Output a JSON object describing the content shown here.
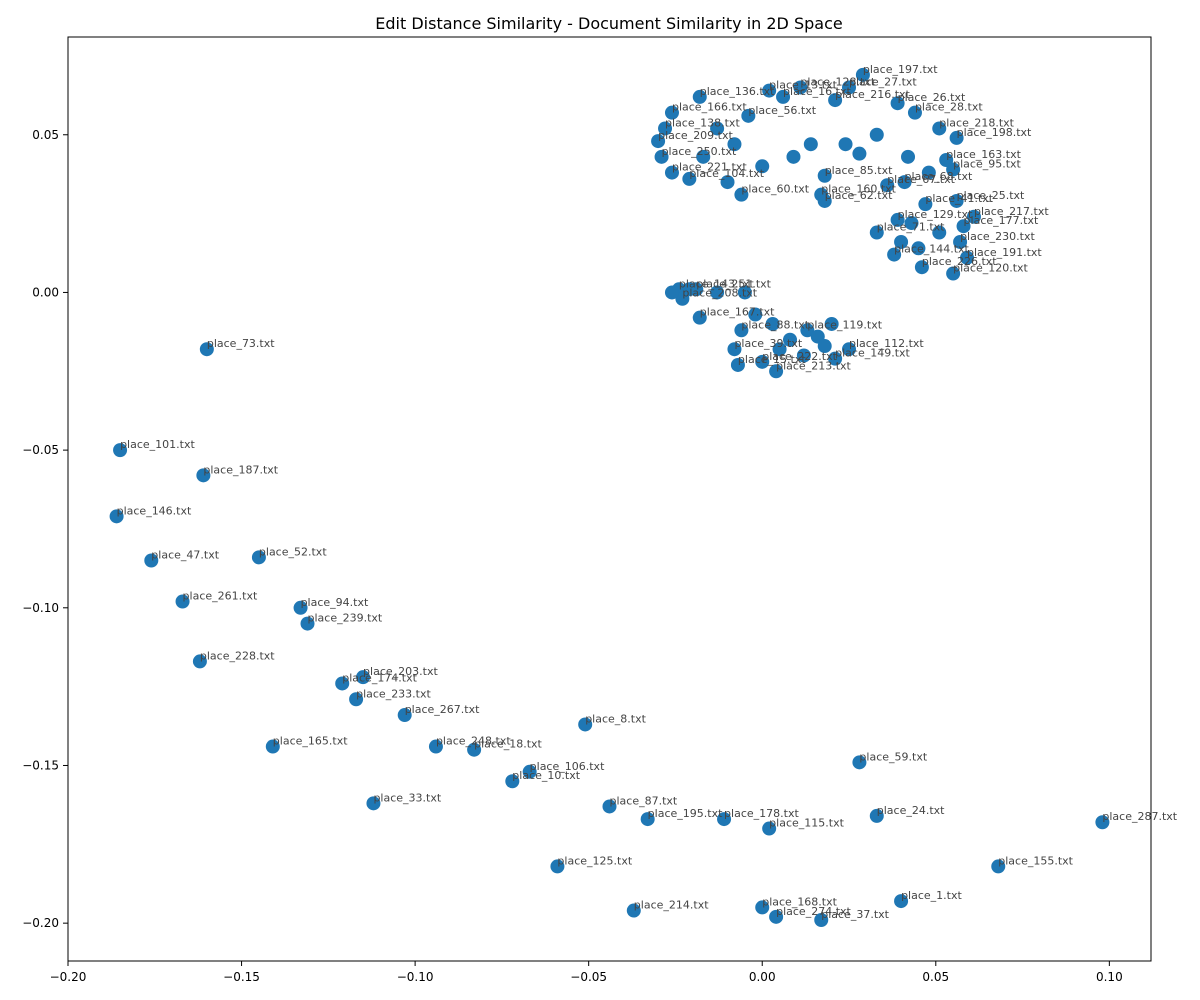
{
  "chart_data": {
    "type": "scatter",
    "title": "Edit Distance Similarity - Document Similarity in 2D Space",
    "xlabel": "",
    "ylabel": "",
    "xlim": [
      -0.2,
      0.112
    ],
    "ylim": [
      -0.212,
      0.081
    ],
    "xticks": [
      -0.2,
      -0.15,
      -0.1,
      -0.05,
      0.0,
      0.05,
      0.1
    ],
    "xtick_labels": [
      "−0.20",
      "−0.15",
      "−0.10",
      "−0.05",
      "0.00",
      "0.05",
      "0.10"
    ],
    "yticks": [
      -0.2,
      -0.15,
      -0.1,
      -0.05,
      0.0,
      0.05
    ],
    "ytick_labels": [
      "−0.20",
      "−0.15",
      "−0.10",
      "−0.05",
      "0.00",
      "0.05"
    ],
    "grid": false,
    "legend": "none",
    "marker_color": "#1f77b4",
    "label_color": "#444444",
    "points": [
      {
        "x": -0.16,
        "y": -0.018,
        "label": "place_73.txt"
      },
      {
        "x": -0.185,
        "y": -0.05,
        "label": "place_101.txt"
      },
      {
        "x": -0.161,
        "y": -0.058,
        "label": "place_187.txt"
      },
      {
        "x": -0.186,
        "y": -0.071,
        "label": "place_146.txt"
      },
      {
        "x": -0.176,
        "y": -0.085,
        "label": "place_47.txt"
      },
      {
        "x": -0.145,
        "y": -0.084,
        "label": "place_52.txt"
      },
      {
        "x": -0.167,
        "y": -0.098,
        "label": "place_261.txt"
      },
      {
        "x": -0.133,
        "y": -0.1,
        "label": "place_94.txt"
      },
      {
        "x": -0.131,
        "y": -0.105,
        "label": "place_239.txt"
      },
      {
        "x": -0.162,
        "y": -0.117,
        "label": "place_228.txt"
      },
      {
        "x": -0.115,
        "y": -0.122,
        "label": "place_203.txt"
      },
      {
        "x": -0.121,
        "y": -0.124,
        "label": "place_174.txt"
      },
      {
        "x": -0.117,
        "y": -0.129,
        "label": "place_233.txt"
      },
      {
        "x": -0.103,
        "y": -0.134,
        "label": "place_267.txt"
      },
      {
        "x": -0.051,
        "y": -0.137,
        "label": "place_8.txt"
      },
      {
        "x": -0.141,
        "y": -0.144,
        "label": "place_165.txt"
      },
      {
        "x": -0.094,
        "y": -0.144,
        "label": "place_248.txt"
      },
      {
        "x": -0.083,
        "y": -0.145,
        "label": "place_18.txt"
      },
      {
        "x": -0.067,
        "y": -0.152,
        "label": "place_106.txt"
      },
      {
        "x": -0.072,
        "y": -0.155,
        "label": "place_10.txt"
      },
      {
        "x": 0.028,
        "y": -0.149,
        "label": "place_59.txt"
      },
      {
        "x": -0.112,
        "y": -0.162,
        "label": "place_33.txt"
      },
      {
        "x": -0.044,
        "y": -0.163,
        "label": "place_87.txt"
      },
      {
        "x": -0.033,
        "y": -0.167,
        "label": "place_195.txt"
      },
      {
        "x": -0.011,
        "y": -0.167,
        "label": "place_178.txt"
      },
      {
        "x": 0.002,
        "y": -0.17,
        "label": "place_115.txt"
      },
      {
        "x": 0.033,
        "y": -0.166,
        "label": "place_24.txt"
      },
      {
        "x": 0.098,
        "y": -0.168,
        "label": "place_287.txt"
      },
      {
        "x": -0.059,
        "y": -0.182,
        "label": "place_125.txt"
      },
      {
        "x": 0.068,
        "y": -0.182,
        "label": "place_155.txt"
      },
      {
        "x": 0.04,
        "y": -0.193,
        "label": "place_1.txt"
      },
      {
        "x": 0.0,
        "y": -0.195,
        "label": "place_168.txt"
      },
      {
        "x": 0.004,
        "y": -0.198,
        "label": "place_274.txt"
      },
      {
        "x": 0.017,
        "y": -0.199,
        "label": "place_37.txt"
      },
      {
        "x": -0.037,
        "y": -0.196,
        "label": "place_214.txt"
      },
      {
        "x": 0.029,
        "y": 0.069,
        "label": "place_197.txt"
      },
      {
        "x": 0.025,
        "y": 0.065,
        "label": "place_27.txt"
      },
      {
        "x": 0.011,
        "y": 0.065,
        "label": "place_128.txt"
      },
      {
        "x": 0.002,
        "y": 0.064,
        "label": "place_13.txt"
      },
      {
        "x": -0.018,
        "y": 0.062,
        "label": "place_136.txt"
      },
      {
        "x": 0.039,
        "y": 0.06,
        "label": "place_26.txt"
      },
      {
        "x": 0.044,
        "y": 0.057,
        "label": "place_28.txt"
      },
      {
        "x": 0.051,
        "y": 0.052,
        "label": "place_218.txt"
      },
      {
        "x": 0.056,
        "y": 0.049,
        "label": "place_198.txt"
      },
      {
        "x": -0.026,
        "y": 0.057,
        "label": "place_166.txt"
      },
      {
        "x": -0.028,
        "y": 0.052,
        "label": "place_138.txt"
      },
      {
        "x": -0.03,
        "y": 0.048,
        "label": "place_209.txt"
      },
      {
        "x": -0.029,
        "y": 0.043,
        "label": "place_250.txt"
      },
      {
        "x": -0.026,
        "y": 0.038,
        "label": "place_221.txt"
      },
      {
        "x": -0.021,
        "y": 0.036,
        "label": "place_104.txt"
      },
      {
        "x": -0.006,
        "y": 0.031,
        "label": "place_60.txt"
      },
      {
        "x": 0.017,
        "y": 0.031,
        "label": "place_160.txt"
      },
      {
        "x": 0.018,
        "y": 0.029,
        "label": "place_62.txt"
      },
      {
        "x": 0.036,
        "y": 0.034,
        "label": "place_67.txt"
      },
      {
        "x": 0.041,
        "y": 0.035,
        "label": "place_68.txt"
      },
      {
        "x": 0.055,
        "y": 0.039,
        "label": "place_95.txt"
      },
      {
        "x": 0.053,
        "y": 0.042,
        "label": "place_163.txt"
      },
      {
        "x": 0.018,
        "y": 0.037,
        "label": "place_85.txt"
      },
      {
        "x": 0.056,
        "y": 0.029,
        "label": "place_25.txt"
      },
      {
        "x": 0.047,
        "y": 0.028,
        "label": "place_41.txt"
      },
      {
        "x": 0.061,
        "y": 0.024,
        "label": "place_217.txt"
      },
      {
        "x": 0.058,
        "y": 0.021,
        "label": "place_177.txt"
      },
      {
        "x": 0.057,
        "y": 0.016,
        "label": "place_230.txt"
      },
      {
        "x": 0.059,
        "y": 0.011,
        "label": "place_191.txt"
      },
      {
        "x": 0.046,
        "y": 0.008,
        "label": "place_226.txt"
      },
      {
        "x": 0.055,
        "y": 0.006,
        "label": "place_120.txt"
      },
      {
        "x": 0.038,
        "y": 0.012,
        "label": "place_144.txt"
      },
      {
        "x": 0.039,
        "y": 0.023,
        "label": "place_129.txt"
      },
      {
        "x": 0.033,
        "y": 0.019,
        "label": "place_71.txt"
      },
      {
        "x": -0.004,
        "y": 0.056,
        "label": "place_56.txt"
      },
      {
        "x": 0.006,
        "y": 0.062,
        "label": "place_16.txt"
      },
      {
        "x": 0.021,
        "y": 0.061,
        "label": "place_216.txt"
      },
      {
        "x": -0.024,
        "y": 0.001,
        "label": "place_143.txt"
      },
      {
        "x": -0.019,
        "y": 0.001,
        "label": "place_251.txt"
      },
      {
        "x": -0.023,
        "y": -0.002,
        "label": "place_208.txt"
      },
      {
        "x": -0.018,
        "y": -0.008,
        "label": "place_167.txt"
      },
      {
        "x": -0.008,
        "y": -0.018,
        "label": "place_39.txt"
      },
      {
        "x": -0.007,
        "y": -0.023,
        "label": "place_15.txt"
      },
      {
        "x": 0.004,
        "y": -0.025,
        "label": "place_213.txt"
      },
      {
        "x": 0.021,
        "y": -0.021,
        "label": "place_149.txt"
      },
      {
        "x": 0.025,
        "y": -0.018,
        "label": "place_112.txt"
      },
      {
        "x": -0.006,
        "y": -0.012,
        "label": "place_88.txt"
      },
      {
        "x": 0.013,
        "y": -0.012,
        "label": "place_119.txt"
      },
      {
        "x": 0.0,
        "y": -0.022,
        "label": "place_222.txt"
      },
      {
        "x": 0.024,
        "y": 0.047,
        "label": ""
      },
      {
        "x": 0.028,
        "y": 0.044,
        "label": ""
      },
      {
        "x": 0.014,
        "y": 0.047,
        "label": ""
      },
      {
        "x": 0.009,
        "y": 0.043,
        "label": ""
      },
      {
        "x": 0.0,
        "y": 0.04,
        "label": ""
      },
      {
        "x": -0.01,
        "y": 0.035,
        "label": ""
      },
      {
        "x": -0.008,
        "y": 0.047,
        "label": ""
      },
      {
        "x": -0.013,
        "y": 0.052,
        "label": ""
      },
      {
        "x": -0.017,
        "y": 0.043,
        "label": ""
      },
      {
        "x": 0.033,
        "y": 0.05,
        "label": ""
      },
      {
        "x": 0.042,
        "y": 0.043,
        "label": ""
      },
      {
        "x": 0.048,
        "y": 0.038,
        "label": ""
      },
      {
        "x": 0.043,
        "y": 0.022,
        "label": ""
      },
      {
        "x": 0.051,
        "y": 0.019,
        "label": ""
      },
      {
        "x": 0.045,
        "y": 0.014,
        "label": ""
      },
      {
        "x": 0.04,
        "y": 0.016,
        "label": ""
      },
      {
        "x": -0.026,
        "y": 0.0,
        "label": ""
      },
      {
        "x": -0.021,
        "y": 0.001,
        "label": ""
      },
      {
        "x": -0.013,
        "y": 0.0,
        "label": ""
      },
      {
        "x": -0.005,
        "y": 0.0,
        "label": ""
      },
      {
        "x": -0.002,
        "y": -0.007,
        "label": ""
      },
      {
        "x": 0.003,
        "y": -0.01,
        "label": ""
      },
      {
        "x": 0.008,
        "y": -0.015,
        "label": ""
      },
      {
        "x": 0.016,
        "y": -0.014,
        "label": ""
      },
      {
        "x": 0.02,
        "y": -0.01,
        "label": ""
      },
      {
        "x": 0.012,
        "y": -0.02,
        "label": ""
      },
      {
        "x": 0.005,
        "y": -0.018,
        "label": ""
      },
      {
        "x": 0.018,
        "y": -0.017,
        "label": ""
      }
    ]
  }
}
